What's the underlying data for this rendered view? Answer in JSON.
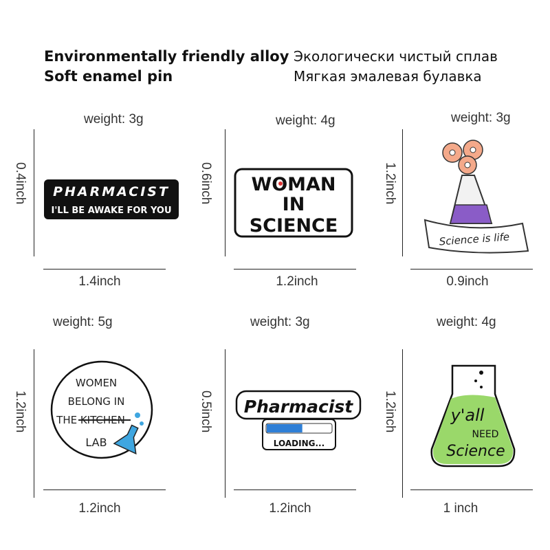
{
  "header": {
    "en_line1": "Environmentally friendly alloy",
    "en_line2": "Soft enamel pin",
    "ru_line1": "Экологически чистый сплав",
    "ru_line2": "Мягкая эмалевая булавка"
  },
  "pins": [
    {
      "weight": "weight:  3g",
      "height": "0.4inch",
      "width": "1.4inch",
      "text1": "PHARMACIST",
      "text2": "I'LL BE AWAKE FOR YOU"
    },
    {
      "weight": "weight:  4g",
      "height": "0.6inch",
      "width": "1.2inch",
      "text1": "WOMAN",
      "text2": "IN",
      "text3": "SCIENCE"
    },
    {
      "weight": "weight:  3g",
      "height": "1.2inch",
      "width": "0.9inch",
      "text1": "Science is life"
    },
    {
      "weight": "weight:  5g",
      "height": "1.2inch",
      "width": "1.2inch",
      "text1": "WOMEN",
      "text2": "BELONG IN",
      "text3": "THE KITCHEN",
      "text4": "LAB"
    },
    {
      "weight": "weight:  3g",
      "height": "0.5inch",
      "width": "1.2inch",
      "text1": "Pharmacist",
      "text2": "LOADING...",
      "progress": 0.55
    },
    {
      "weight": "weight:  4g",
      "height": "1.2inch",
      "width": "1 inch",
      "text1": "y'all",
      "text2": "NEED",
      "text3": "Science"
    }
  ],
  "colors": {
    "purple": "#8a5cc7",
    "green": "#9ad86a",
    "blue": "#3fa6e0",
    "peach": "#f4a98a",
    "loading_blue": "#2f7fd6"
  }
}
